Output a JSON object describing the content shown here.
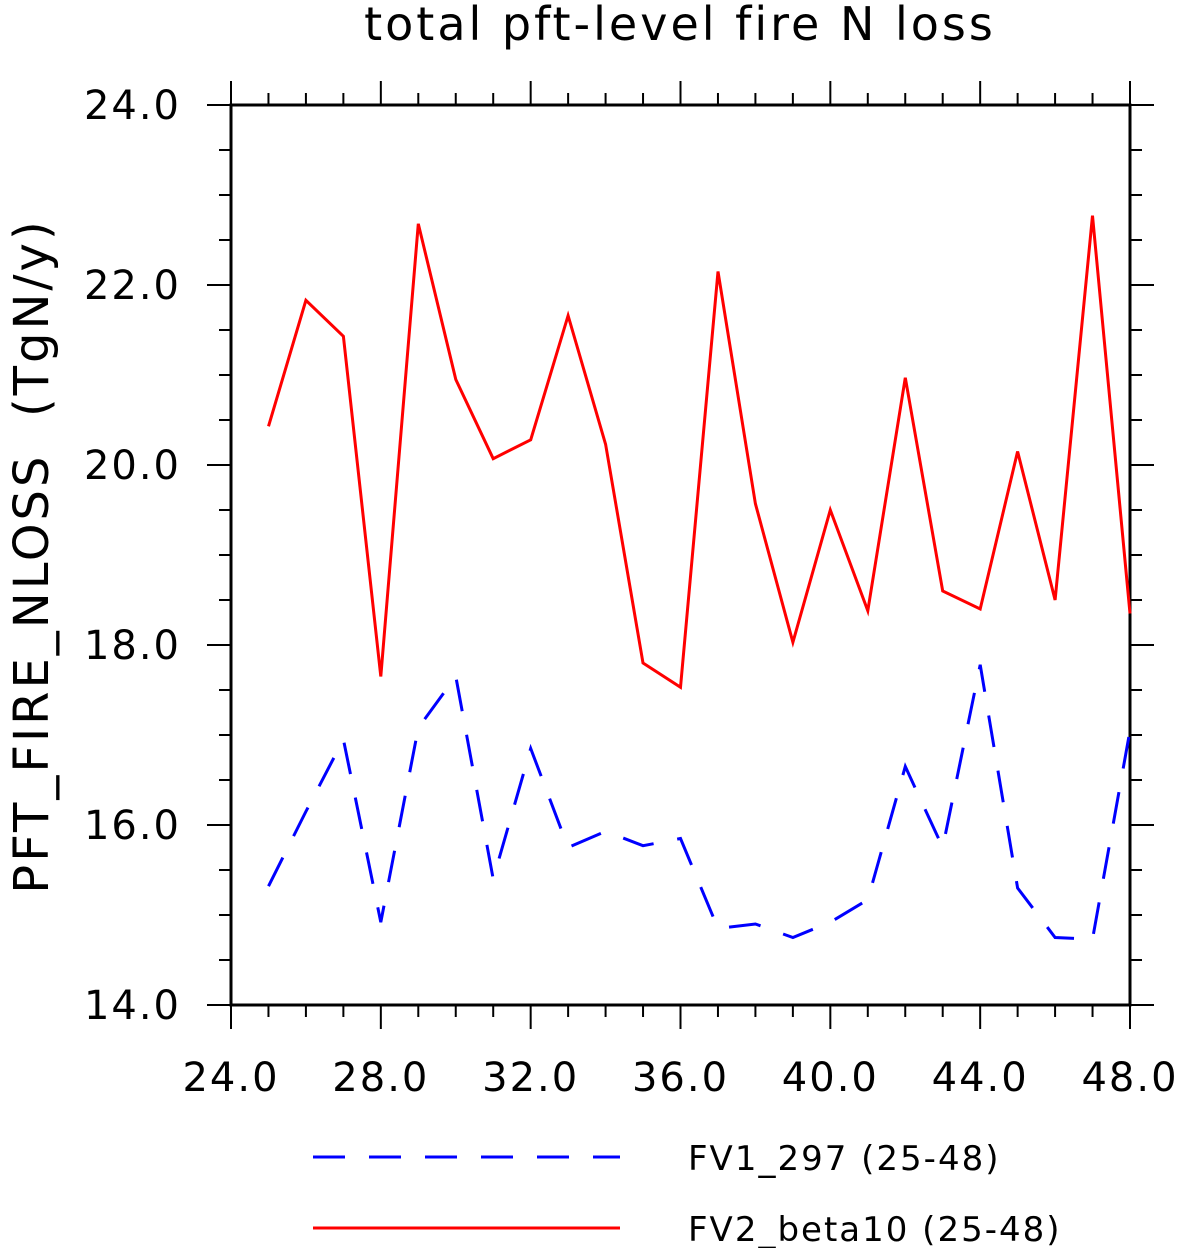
{
  "chart_data": {
    "type": "line",
    "title": "total pft-level fire N loss",
    "xlabel": "",
    "ylabel": "PFT_FIRE_NLOSS  (TgN/y)",
    "xlim": [
      24,
      48
    ],
    "ylim": [
      14,
      24
    ],
    "x_ticks": [
      24,
      28,
      32,
      36,
      40,
      44,
      48
    ],
    "y_ticks": [
      14,
      16,
      18,
      20,
      22,
      24
    ],
    "x_tick_labels": [
      "24.0",
      "28.0",
      "32.0",
      "36.0",
      "40.0",
      "44.0",
      "48.0"
    ],
    "y_tick_labels": [
      "14.0",
      "16.0",
      "18.0",
      "20.0",
      "22.0",
      "24.0"
    ],
    "grid": false,
    "legend_position": "bottom",
    "x": [
      25,
      26,
      27,
      28,
      29,
      30,
      31,
      32,
      33,
      34,
      35,
      36,
      37,
      38,
      39,
      40,
      41,
      42,
      43,
      44,
      45,
      46,
      47,
      48
    ],
    "series": [
      {
        "name": "FV1_297 (25-48)",
        "color": "#0000ff",
        "style": "dashed",
        "values": [
          15.32,
          16.15,
          16.95,
          14.92,
          17.08,
          17.65,
          15.4,
          16.85,
          15.75,
          15.93,
          15.77,
          15.85,
          14.85,
          14.9,
          14.75,
          14.92,
          15.17,
          16.65,
          15.75,
          17.78,
          15.3,
          14.75,
          14.73,
          17.05
        ]
      },
      {
        "name": "FV2_beta10 (25-48)",
        "color": "#ff0000",
        "style": "solid",
        "values": [
          20.43,
          21.83,
          21.43,
          17.65,
          22.68,
          20.95,
          20.07,
          20.28,
          21.66,
          20.23,
          17.8,
          17.53,
          22.15,
          19.57,
          18.03,
          19.5,
          18.38,
          20.97,
          18.6,
          18.4,
          20.15,
          18.5,
          22.77,
          18.35
        ]
      }
    ]
  }
}
